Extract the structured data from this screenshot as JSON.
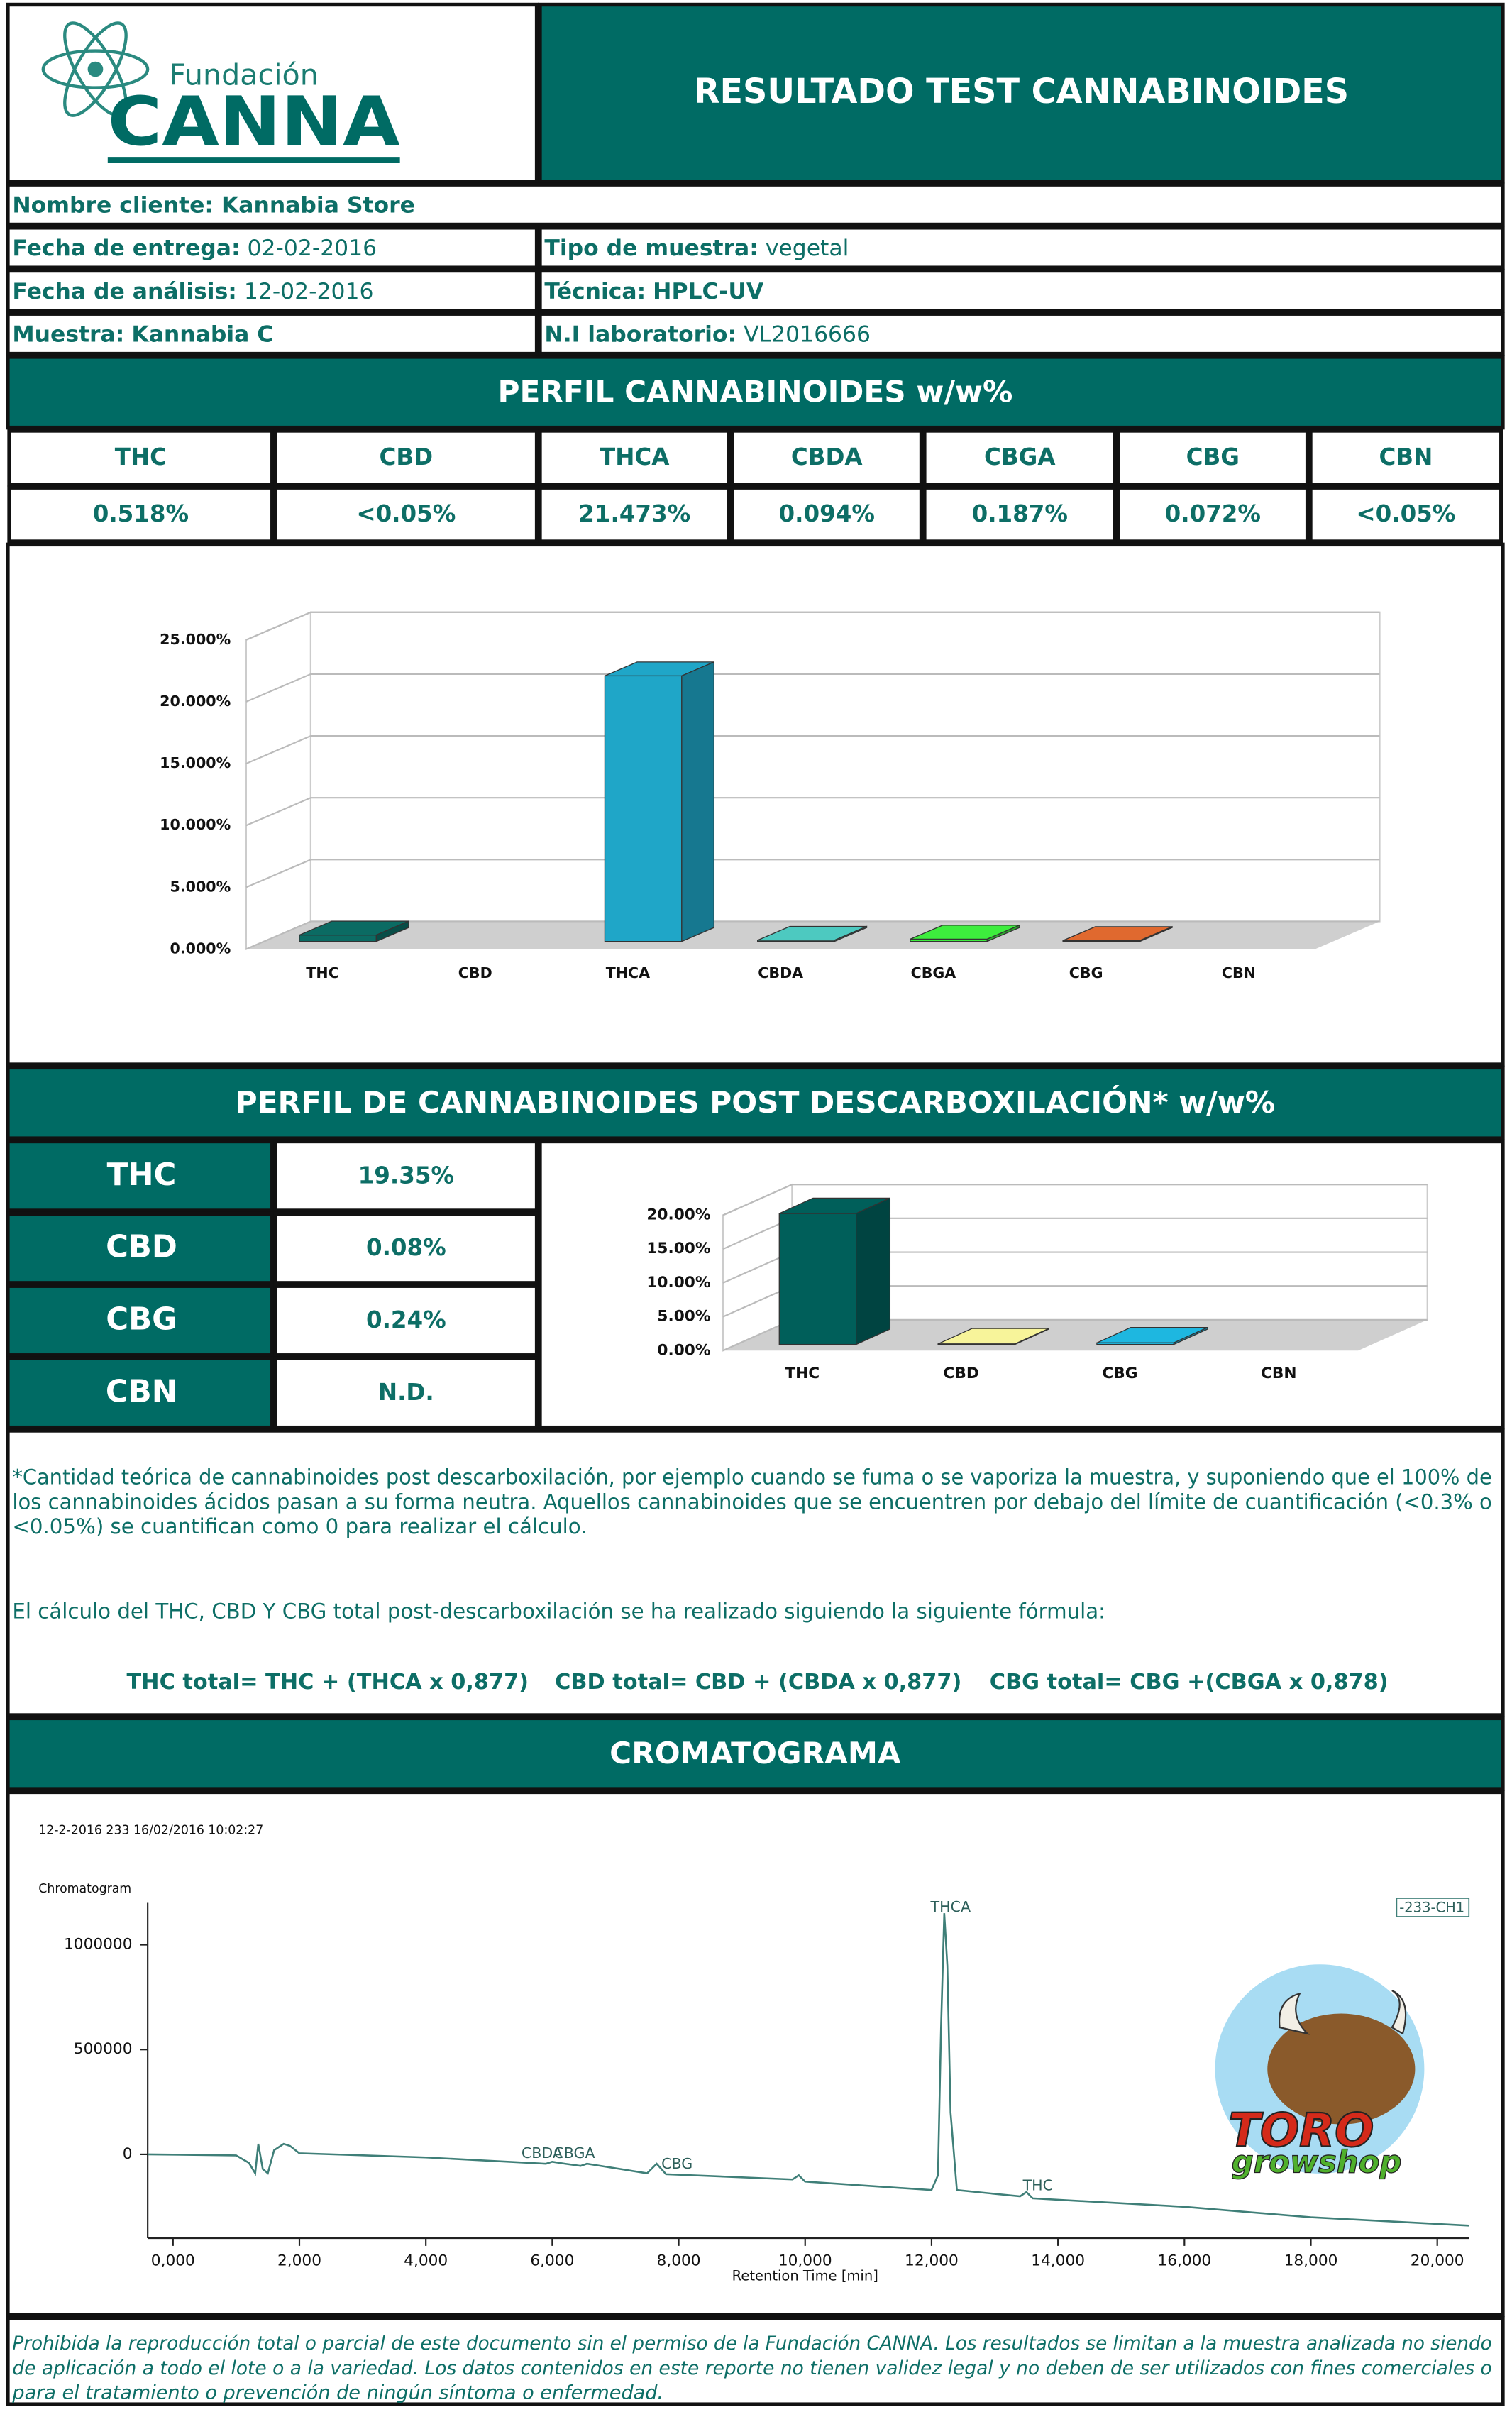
{
  "header": {
    "logo_top": "Fundación",
    "logo_main": "CANNA",
    "title": "RESULTADO TEST CANNABINOIDES"
  },
  "info": {
    "client": "Nombre cliente: Kannabia Store",
    "rows": [
      [
        {
          "label": "Fecha de entrega:",
          "value": "02-02-2016",
          "value_bold": false
        },
        {
          "label": "Tipo de muestra:",
          "value": "vegetal",
          "value_bold": false
        }
      ],
      [
        {
          "label": "Fecha de análisis:",
          "value": "12-02-2016",
          "value_bold": false
        },
        {
          "label": "Técnica:",
          "value": "HPLC-UV",
          "value_bold": true
        }
      ],
      [
        {
          "label": "Muestra:",
          "value": "Kannabia C",
          "value_bold": true
        },
        {
          "label": "N.I laboratorio:",
          "value": "VL2016666",
          "value_bold": false
        }
      ]
    ]
  },
  "profile": {
    "title": "PERFIL CANNABINOIDES w/w%",
    "headers": [
      "THC",
      "CBD",
      "THCA",
      "CBDA",
      "CBGA",
      "CBG",
      "CBN"
    ],
    "values": [
      "0.518%",
      "<0.05%",
      "21.473%",
      "0.094%",
      "0.187%",
      "0.072%",
      "<0.05%"
    ]
  },
  "post": {
    "title": "PERFIL DE CANNABINOIDES POST DESCARBOXILACIÓN* w/w%",
    "rows": [
      [
        "THC",
        "19.35%"
      ],
      [
        "CBD",
        "0.08%"
      ],
      [
        "CBG",
        "0.24%"
      ],
      [
        "CBN",
        "N.D."
      ]
    ]
  },
  "chart_data": [
    {
      "type": "bar3d",
      "categories": [
        "THC",
        "CBD",
        "THCA",
        "CBDA",
        "CBGA",
        "CBG",
        "CBN"
      ],
      "values": [
        0.518,
        null,
        21.473,
        0.094,
        0.187,
        0.072,
        null
      ],
      "colors": [
        "#0b6b63",
        "#0b6b63",
        "#1fa6c8",
        "#4dc9c0",
        "#3ded3d",
        "#e0692f",
        "#0b6b63"
      ],
      "ylim": [
        0,
        25
      ],
      "yticks": [
        {
          "value": 0,
          "label": "0.000%"
        },
        {
          "value": 5,
          "label": "5.000%"
        },
        {
          "value": 10,
          "label": "10.000%"
        },
        {
          "value": 15,
          "label": "15.000%"
        },
        {
          "value": 20,
          "label": "20.000%"
        },
        {
          "value": 25,
          "label": "25.000%"
        }
      ],
      "grid": true
    },
    {
      "type": "bar3d",
      "categories": [
        "THC",
        "CBD",
        "CBG",
        "CBN"
      ],
      "values": [
        19.35,
        0.08,
        0.24,
        null
      ],
      "colors": [
        "#005f5a",
        "#f7f49a",
        "#1eb7e0",
        "#005f5a"
      ],
      "ylim": [
        0,
        20
      ],
      "yticks": [
        {
          "value": 0,
          "label": "0.00%"
        },
        {
          "value": 5,
          "label": "5.00%"
        },
        {
          "value": 10,
          "label": "10.00%"
        },
        {
          "value": 15,
          "label": "15.00%"
        },
        {
          "value": 20,
          "label": "20.00%"
        }
      ],
      "grid": true
    },
    {
      "type": "line",
      "title": "12-2-2016 233 16/02/2016 10:02:27",
      "ylabel": "Chromatogram",
      "xlabel": "Retention Time [min]",
      "series_name": "-233-CH1",
      "color": "#3f7f78",
      "x": [
        -0.4,
        1.0,
        1.2,
        1.3,
        1.35,
        1.42,
        1.5,
        1.6,
        1.75,
        1.85,
        2.0,
        4.0,
        5.9,
        6.0,
        6.2,
        6.45,
        6.55,
        7.5,
        7.65,
        7.8,
        9.8,
        9.9,
        10.0,
        12.0,
        12.1,
        12.15,
        12.2,
        12.25,
        12.3,
        12.4,
        13.4,
        13.5,
        13.6,
        16.0,
        18.0,
        20.5
      ],
      "values": [
        0,
        -5000,
        -40000,
        -90000,
        50000,
        -70000,
        -90000,
        20000,
        50000,
        40000,
        5000,
        -15000,
        -45000,
        -35000,
        -45000,
        -55000,
        -45000,
        -90000,
        -45000,
        -95000,
        -120000,
        -100000,
        -130000,
        -170000,
        -100000,
        600000,
        1150000,
        900000,
        200000,
        -170000,
        -200000,
        -180000,
        -210000,
        -250000,
        -300000,
        -340000
      ],
      "xlim": [
        -0.4,
        20.5
      ],
      "ylim": [
        -400000,
        1200000
      ],
      "yticks": [
        0,
        500000,
        1000000
      ],
      "xticks": [
        {
          "value": 0,
          "label": "0,000"
        },
        {
          "value": 2,
          "label": "2,000"
        },
        {
          "value": 4,
          "label": "4,000"
        },
        {
          "value": 6,
          "label": "6,000"
        },
        {
          "value": 8,
          "label": "8,000"
        },
        {
          "value": 10,
          "label": "10,000"
        },
        {
          "value": 12,
          "label": "12,000"
        },
        {
          "value": 14,
          "label": "14,000"
        },
        {
          "value": 16,
          "label": "16,000"
        },
        {
          "value": 18,
          "label": "18,000"
        },
        {
          "value": 20,
          "label": "20,000"
        }
      ],
      "peaks": [
        "CBDA",
        "CBGA",
        "CBG",
        "THCA",
        "THC"
      ]
    }
  ],
  "notes": {
    "lines": [
      "*Cantidad teórica de cannabinoides post descarboxilación, por ejemplo cuando se fuma o se vaporiza la muestra, y suponiendo que el 100% de",
      "los cannabinoides ácidos pasan a su forma neutra. Aquellos cannabinoides que se encuentren por debajo del límite de cuantificación (<0.3% o",
      "<0.05%) se cuantifican como 0 para realizar el cálculo."
    ],
    "formula_intro": "El cálculo del THC, CBD Y CBG total post-descarboxilación se ha realizado siguiendo la siguiente fórmula:",
    "formulas": [
      "THC total=  THC + (THCA x 0,877)",
      "CBD total= CBD + (CBDA x 0,877)",
      "CBG total= CBG +(CBGA x 0,878)"
    ]
  },
  "chromatogram_title": "CROMATOGRAMA",
  "watermark": {
    "brand": "TORO",
    "sub": "growshop"
  },
  "footer": {
    "lines": [
      "Prohibida la reproducción total o parcial de este documento sin el permiso de la Fundación CANNA.  Los resultados se limitan a la muestra analizada no siendo",
      "de aplicación a todo el lote o a la variedad. Los datos contenidos en este reporte no tienen validez legal y no deben de ser utilizados con fines comerciales o",
      "para el tratamiento o prevención de ningún síntoma o enfermedad."
    ]
  }
}
